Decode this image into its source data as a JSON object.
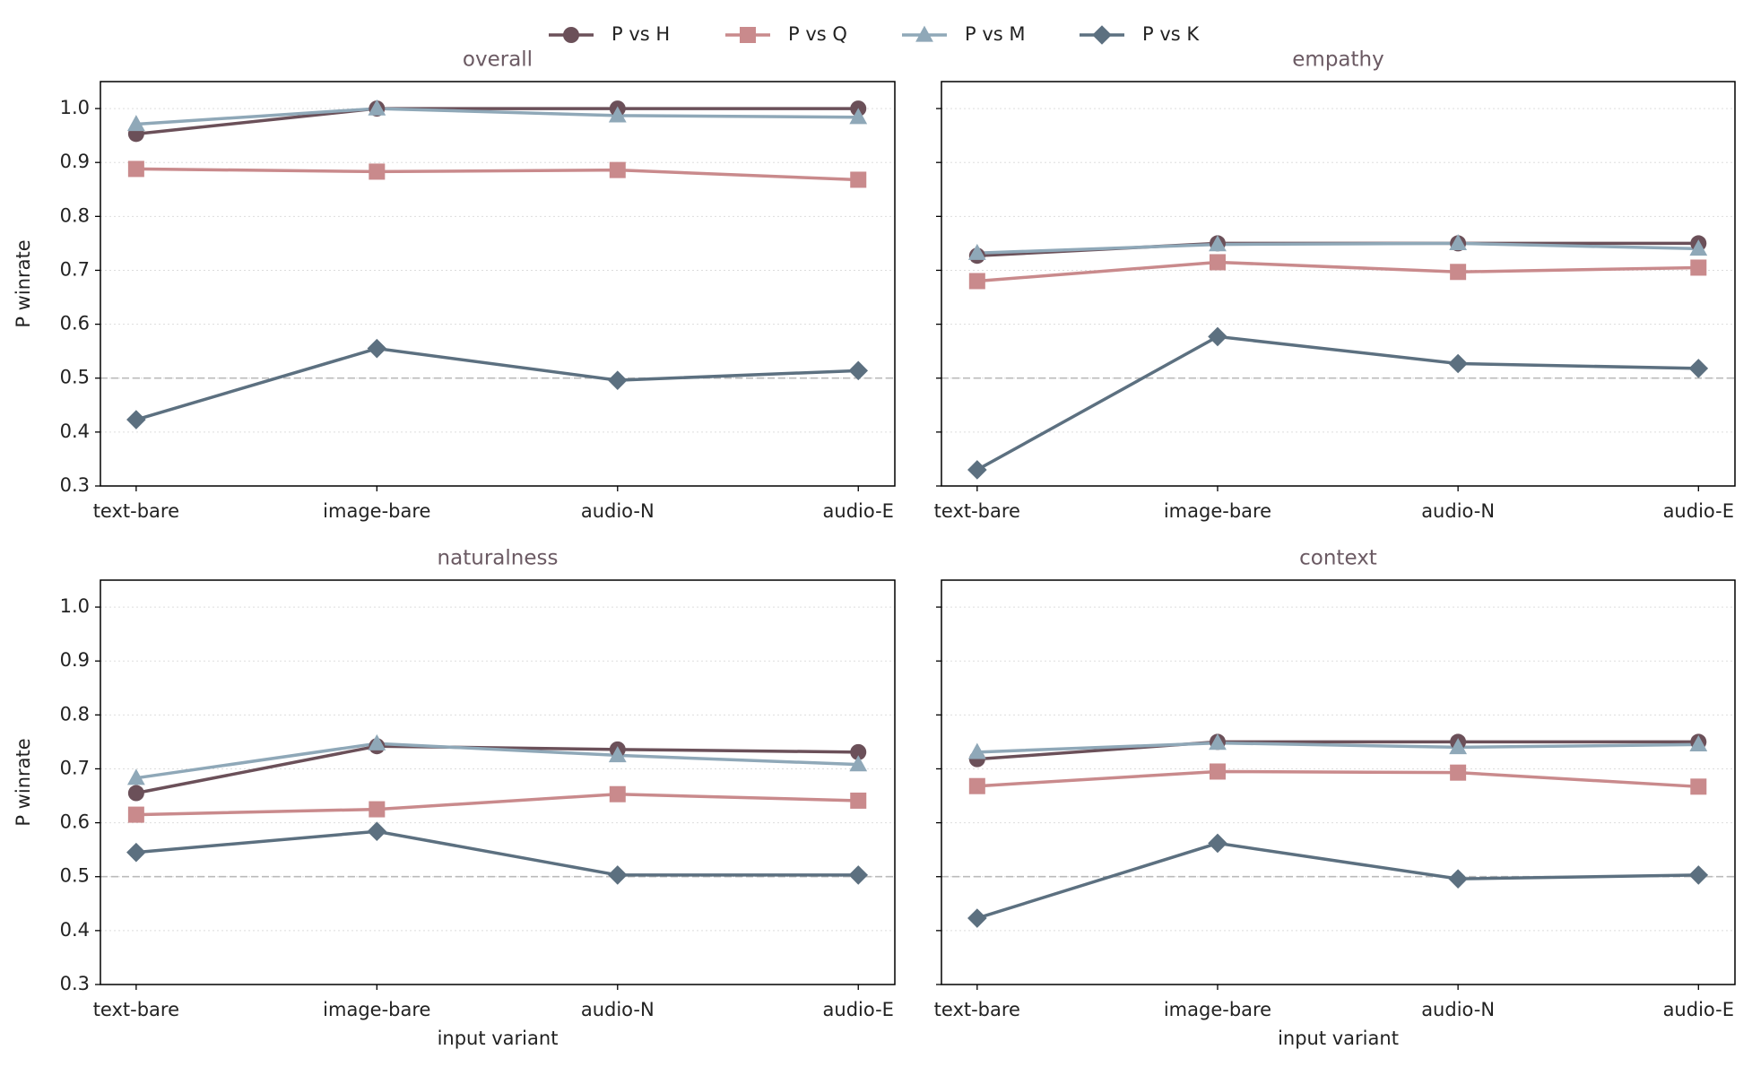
{
  "chart_data": {
    "type": "line",
    "legend_position": "top",
    "grid": true,
    "hline": 0.5,
    "xlabel": "input variant",
    "ylabel": "P winrate",
    "categories": [
      "text-bare",
      "image-bare",
      "audio-N",
      "audio-E"
    ],
    "ylim": [
      0.3,
      1.05
    ],
    "yticks": [
      0.3,
      0.4,
      0.5,
      0.6,
      0.7,
      0.8,
      0.9,
      {
        "value": 1,
        "label": "1.0"
      }
    ],
    "series": [
      {
        "name": "P vs H",
        "color": "#6b5059",
        "marker": "circle"
      },
      {
        "name": "P vs Q",
        "color": "#c98a8c",
        "marker": "square"
      },
      {
        "name": "P vs M",
        "color": "#8fa8b8",
        "marker": "triangle"
      },
      {
        "name": "P vs K",
        "color": "#5c7080",
        "marker": "diamond"
      }
    ],
    "panels": [
      {
        "title": "overall",
        "series": [
          {
            "values": [
              0.953,
              1.0,
              1.0,
              1.0
            ]
          },
          {
            "values": [
              0.888,
              0.883,
              0.886,
              0.868
            ]
          },
          {
            "values": [
              0.971,
              1.0,
              0.987,
              0.984
            ]
          },
          {
            "values": [
              0.423,
              0.555,
              0.496,
              0.514
            ]
          }
        ]
      },
      {
        "title": "empathy",
        "series": [
          {
            "values": [
              0.727,
              0.75,
              0.75,
              0.75
            ]
          },
          {
            "values": [
              0.68,
              0.715,
              0.697,
              0.705
            ]
          },
          {
            "values": [
              0.732,
              0.748,
              0.75,
              0.74
            ]
          },
          {
            "values": [
              0.33,
              0.577,
              0.527,
              0.518
            ]
          }
        ]
      },
      {
        "title": "naturalness",
        "series": [
          {
            "values": [
              0.655,
              0.742,
              0.736,
              0.731
            ]
          },
          {
            "values": [
              0.615,
              0.625,
              0.653,
              0.641
            ]
          },
          {
            "values": [
              0.683,
              0.747,
              0.725,
              0.708
            ]
          },
          {
            "values": [
              0.545,
              0.584,
              0.503,
              0.503
            ]
          }
        ]
      },
      {
        "title": "context",
        "series": [
          {
            "values": [
              0.718,
              0.75,
              0.75,
              0.75
            ]
          },
          {
            "values": [
              0.668,
              0.695,
              0.693,
              0.667
            ]
          },
          {
            "values": [
              0.731,
              0.748,
              0.74,
              0.745
            ]
          },
          {
            "values": [
              0.423,
              0.562,
              0.496,
              0.503
            ]
          }
        ]
      }
    ]
  }
}
